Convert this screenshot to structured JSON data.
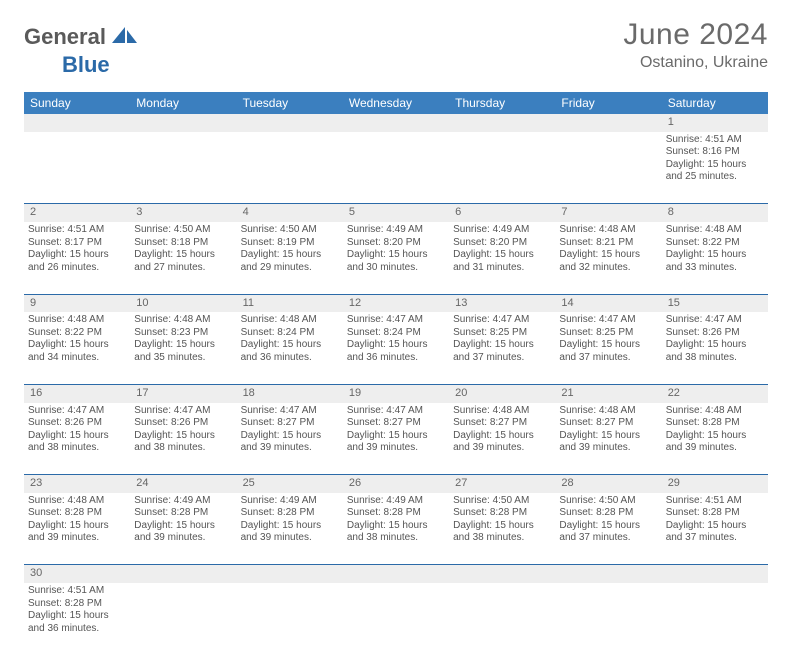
{
  "brand": {
    "part1": "General",
    "part2": "Blue"
  },
  "title": "June 2024",
  "location": "Ostanino, Ukraine",
  "colors": {
    "header_bg": "#3b7fbf",
    "header_text": "#ffffff",
    "rule": "#2b6aa8",
    "daynum_bg": "#eeeeee",
    "body_text": "#555555",
    "title_text": "#6a6a6a",
    "logo_gray": "#5a5a5a",
    "logo_blue": "#2b6aa8"
  },
  "layout": {
    "cols": 7,
    "cell_font_size": 10,
    "header_font_size": 12
  },
  "weekdays": [
    "Sunday",
    "Monday",
    "Tuesday",
    "Wednesday",
    "Thursday",
    "Friday",
    "Saturday"
  ],
  "weeks": [
    [
      null,
      null,
      null,
      null,
      null,
      null,
      {
        "n": "1",
        "sr": "Sunrise: 4:51 AM",
        "ss": "Sunset: 8:16 PM",
        "d1": "Daylight: 15 hours",
        "d2": "and 25 minutes."
      }
    ],
    [
      {
        "n": "2",
        "sr": "Sunrise: 4:51 AM",
        "ss": "Sunset: 8:17 PM",
        "d1": "Daylight: 15 hours",
        "d2": "and 26 minutes."
      },
      {
        "n": "3",
        "sr": "Sunrise: 4:50 AM",
        "ss": "Sunset: 8:18 PM",
        "d1": "Daylight: 15 hours",
        "d2": "and 27 minutes."
      },
      {
        "n": "4",
        "sr": "Sunrise: 4:50 AM",
        "ss": "Sunset: 8:19 PM",
        "d1": "Daylight: 15 hours",
        "d2": "and 29 minutes."
      },
      {
        "n": "5",
        "sr": "Sunrise: 4:49 AM",
        "ss": "Sunset: 8:20 PM",
        "d1": "Daylight: 15 hours",
        "d2": "and 30 minutes."
      },
      {
        "n": "6",
        "sr": "Sunrise: 4:49 AM",
        "ss": "Sunset: 8:20 PM",
        "d1": "Daylight: 15 hours",
        "d2": "and 31 minutes."
      },
      {
        "n": "7",
        "sr": "Sunrise: 4:48 AM",
        "ss": "Sunset: 8:21 PM",
        "d1": "Daylight: 15 hours",
        "d2": "and 32 minutes."
      },
      {
        "n": "8",
        "sr": "Sunrise: 4:48 AM",
        "ss": "Sunset: 8:22 PM",
        "d1": "Daylight: 15 hours",
        "d2": "and 33 minutes."
      }
    ],
    [
      {
        "n": "9",
        "sr": "Sunrise: 4:48 AM",
        "ss": "Sunset: 8:22 PM",
        "d1": "Daylight: 15 hours",
        "d2": "and 34 minutes."
      },
      {
        "n": "10",
        "sr": "Sunrise: 4:48 AM",
        "ss": "Sunset: 8:23 PM",
        "d1": "Daylight: 15 hours",
        "d2": "and 35 minutes."
      },
      {
        "n": "11",
        "sr": "Sunrise: 4:48 AM",
        "ss": "Sunset: 8:24 PM",
        "d1": "Daylight: 15 hours",
        "d2": "and 36 minutes."
      },
      {
        "n": "12",
        "sr": "Sunrise: 4:47 AM",
        "ss": "Sunset: 8:24 PM",
        "d1": "Daylight: 15 hours",
        "d2": "and 36 minutes."
      },
      {
        "n": "13",
        "sr": "Sunrise: 4:47 AM",
        "ss": "Sunset: 8:25 PM",
        "d1": "Daylight: 15 hours",
        "d2": "and 37 minutes."
      },
      {
        "n": "14",
        "sr": "Sunrise: 4:47 AM",
        "ss": "Sunset: 8:25 PM",
        "d1": "Daylight: 15 hours",
        "d2": "and 37 minutes."
      },
      {
        "n": "15",
        "sr": "Sunrise: 4:47 AM",
        "ss": "Sunset: 8:26 PM",
        "d1": "Daylight: 15 hours",
        "d2": "and 38 minutes."
      }
    ],
    [
      {
        "n": "16",
        "sr": "Sunrise: 4:47 AM",
        "ss": "Sunset: 8:26 PM",
        "d1": "Daylight: 15 hours",
        "d2": "and 38 minutes."
      },
      {
        "n": "17",
        "sr": "Sunrise: 4:47 AM",
        "ss": "Sunset: 8:26 PM",
        "d1": "Daylight: 15 hours",
        "d2": "and 38 minutes."
      },
      {
        "n": "18",
        "sr": "Sunrise: 4:47 AM",
        "ss": "Sunset: 8:27 PM",
        "d1": "Daylight: 15 hours",
        "d2": "and 39 minutes."
      },
      {
        "n": "19",
        "sr": "Sunrise: 4:47 AM",
        "ss": "Sunset: 8:27 PM",
        "d1": "Daylight: 15 hours",
        "d2": "and 39 minutes."
      },
      {
        "n": "20",
        "sr": "Sunrise: 4:48 AM",
        "ss": "Sunset: 8:27 PM",
        "d1": "Daylight: 15 hours",
        "d2": "and 39 minutes."
      },
      {
        "n": "21",
        "sr": "Sunrise: 4:48 AM",
        "ss": "Sunset: 8:27 PM",
        "d1": "Daylight: 15 hours",
        "d2": "and 39 minutes."
      },
      {
        "n": "22",
        "sr": "Sunrise: 4:48 AM",
        "ss": "Sunset: 8:28 PM",
        "d1": "Daylight: 15 hours",
        "d2": "and 39 minutes."
      }
    ],
    [
      {
        "n": "23",
        "sr": "Sunrise: 4:48 AM",
        "ss": "Sunset: 8:28 PM",
        "d1": "Daylight: 15 hours",
        "d2": "and 39 minutes."
      },
      {
        "n": "24",
        "sr": "Sunrise: 4:49 AM",
        "ss": "Sunset: 8:28 PM",
        "d1": "Daylight: 15 hours",
        "d2": "and 39 minutes."
      },
      {
        "n": "25",
        "sr": "Sunrise: 4:49 AM",
        "ss": "Sunset: 8:28 PM",
        "d1": "Daylight: 15 hours",
        "d2": "and 39 minutes."
      },
      {
        "n": "26",
        "sr": "Sunrise: 4:49 AM",
        "ss": "Sunset: 8:28 PM",
        "d1": "Daylight: 15 hours",
        "d2": "and 38 minutes."
      },
      {
        "n": "27",
        "sr": "Sunrise: 4:50 AM",
        "ss": "Sunset: 8:28 PM",
        "d1": "Daylight: 15 hours",
        "d2": "and 38 minutes."
      },
      {
        "n": "28",
        "sr": "Sunrise: 4:50 AM",
        "ss": "Sunset: 8:28 PM",
        "d1": "Daylight: 15 hours",
        "d2": "and 37 minutes."
      },
      {
        "n": "29",
        "sr": "Sunrise: 4:51 AM",
        "ss": "Sunset: 8:28 PM",
        "d1": "Daylight: 15 hours",
        "d2": "and 37 minutes."
      }
    ],
    [
      {
        "n": "30",
        "sr": "Sunrise: 4:51 AM",
        "ss": "Sunset: 8:28 PM",
        "d1": "Daylight: 15 hours",
        "d2": "and 36 minutes."
      },
      null,
      null,
      null,
      null,
      null,
      null
    ]
  ]
}
